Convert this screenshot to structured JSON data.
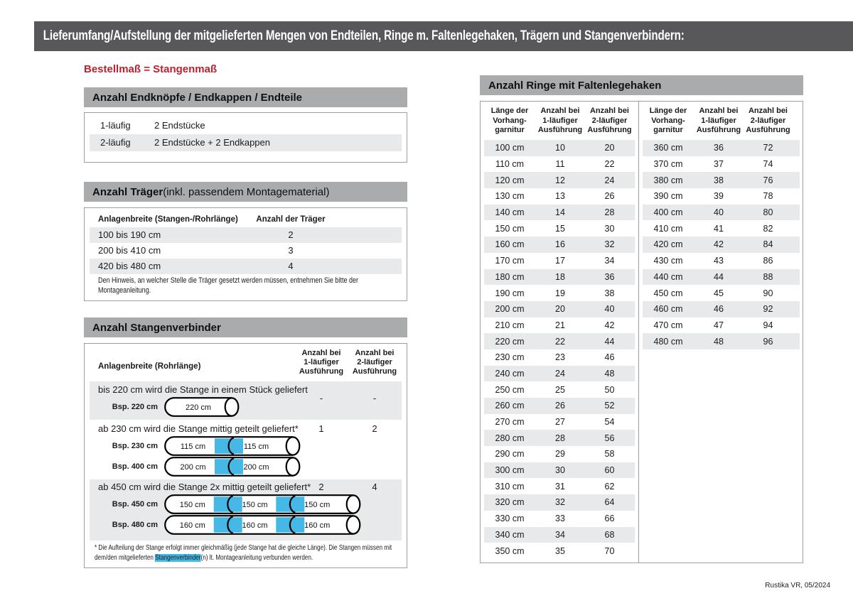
{
  "page": {
    "header": "Lieferumfang/Aufstellung der mitgelieferten Mengen von Endteilen, Ringe m. Faltenlegehaken, Trägern und Stangenverbindern:",
    "subtitle": "Bestellmaß = Stangenmaß",
    "footer": "Rustika VR, 05/2024"
  },
  "colors": {
    "header_bar": "#58585a",
    "section_bar": "#a9abad",
    "row_stripe": "#e8e9ea",
    "connector_blue": "#45b8e6",
    "accent_red": "#be1e2d"
  },
  "endteile": {
    "title": "Anzahl Endknöpfe / Endkappen / Endteile",
    "rows": [
      {
        "label": "1-läufig",
        "value": "2 Endstücke"
      },
      {
        "label": "2-läufig",
        "value": "2 Endstücke + 2 Endkappen"
      }
    ]
  },
  "traeger": {
    "title_bold": "Anzahl Träger",
    "title_rest": " (inkl. passendem Montagematerial)",
    "col1": "Anlagenbreite (Stangen-/Rohrlänge)",
    "col2": "Anzahl der Träger",
    "rows": [
      {
        "range": "100 bis 190 cm",
        "count": "2"
      },
      {
        "range": "200 bis 410 cm",
        "count": "3"
      },
      {
        "range": "420 bis 480 cm",
        "count": "4"
      }
    ],
    "note": "Den Hinweis, an welcher Stelle die Träger gesetzt werden müssen, entnehmen Sie bitte der Montageanleitung."
  },
  "verbinder": {
    "title": "Anzahl Stangenverbinder",
    "col1": "Anlagenbreite (Rohrlänge)",
    "col2_lines": [
      "Anzahl bei",
      "1-läufiger",
      "Ausführung"
    ],
    "col3_lines": [
      "Anzahl bei",
      "2-läufiger",
      "Ausführung"
    ],
    "groups": [
      {
        "desc": "bis 220 cm wird die Stange in einem Stück geliefert",
        "count1": "-",
        "count2": "-",
        "examples": [
          {
            "label": "Bsp. 220 cm",
            "segments": [
              "220 cm"
            ]
          }
        ]
      },
      {
        "desc": "ab 230 cm wird die Stange mittig geteilt geliefert*",
        "count1": "1",
        "count2": "2",
        "examples": [
          {
            "label": "Bsp. 230 cm",
            "segments": [
              "115 cm",
              "115 cm"
            ]
          },
          {
            "label": "Bsp. 400 cm",
            "segments": [
              "200 cm",
              "200 cm"
            ]
          }
        ]
      },
      {
        "desc": "ab 450 cm wird die Stange 2x mittig geteilt geliefert*",
        "count1": "2",
        "count2": "4",
        "examples": [
          {
            "label": "Bsp. 450 cm",
            "segments": [
              "150 cm",
              "150 cm",
              "150 cm"
            ]
          },
          {
            "label": "Bsp. 480 cm",
            "segments": [
              "160 cm",
              "160 cm",
              "160 cm"
            ]
          }
        ]
      }
    ],
    "footnote_pre": "* Die Aufteilung der Stange erfolgt immer gleichmäßig (jede Stange hat die gleiche Länge). Die Stangen müssen mit dem/den mitgelieferten ",
    "footnote_highlight": "Stangenverbinder",
    "footnote_post": "(n) lt. Montageanleitung verbunden werden."
  },
  "ringe": {
    "title": "Anzahl Ringe mit Faltenlegehaken",
    "col_headers": [
      [
        "Länge der",
        "Vorhang-",
        "garnitur"
      ],
      [
        "Anzahl bei",
        "1-läufiger",
        "Ausführung"
      ],
      [
        "Anzahl bei",
        "2-läufiger",
        "Ausführung"
      ]
    ],
    "left_rows": [
      {
        "len": "100 cm",
        "c1": "10",
        "c2": "20"
      },
      {
        "len": "110 cm",
        "c1": "11",
        "c2": "22"
      },
      {
        "len": "120 cm",
        "c1": "12",
        "c2": "24"
      },
      {
        "len": "130 cm",
        "c1": "13",
        "c2": "26"
      },
      {
        "len": "140 cm",
        "c1": "14",
        "c2": "28"
      },
      {
        "len": "150 cm",
        "c1": "15",
        "c2": "30"
      },
      {
        "len": "160 cm",
        "c1": "16",
        "c2": "32"
      },
      {
        "len": "170 cm",
        "c1": "17",
        "c2": "34"
      },
      {
        "len": "180 cm",
        "c1": "18",
        "c2": "36"
      },
      {
        "len": "190 cm",
        "c1": "19",
        "c2": "38"
      },
      {
        "len": "200 cm",
        "c1": "20",
        "c2": "40"
      },
      {
        "len": "210 cm",
        "c1": "21",
        "c2": "42"
      },
      {
        "len": "220 cm",
        "c1": "22",
        "c2": "44"
      },
      {
        "len": "230 cm",
        "c1": "23",
        "c2": "46"
      },
      {
        "len": "240 cm",
        "c1": "24",
        "c2": "48"
      },
      {
        "len": "250 cm",
        "c1": "25",
        "c2": "50"
      },
      {
        "len": "260 cm",
        "c1": "26",
        "c2": "52"
      },
      {
        "len": "270 cm",
        "c1": "27",
        "c2": "54"
      },
      {
        "len": "280 cm",
        "c1": "28",
        "c2": "56"
      },
      {
        "len": "290 cm",
        "c1": "29",
        "c2": "58"
      },
      {
        "len": "300 cm",
        "c1": "30",
        "c2": "60"
      },
      {
        "len": "310 cm",
        "c1": "31",
        "c2": "62"
      },
      {
        "len": "320 cm",
        "c1": "32",
        "c2": "64"
      },
      {
        "len": "330 cm",
        "c1": "33",
        "c2": "66"
      },
      {
        "len": "340 cm",
        "c1": "34",
        "c2": "68"
      },
      {
        "len": "350 cm",
        "c1": "35",
        "c2": "70"
      }
    ],
    "right_rows": [
      {
        "len": "360 cm",
        "c1": "36",
        "c2": "72"
      },
      {
        "len": "370 cm",
        "c1": "37",
        "c2": "74"
      },
      {
        "len": "380 cm",
        "c1": "38",
        "c2": "76"
      },
      {
        "len": "390 cm",
        "c1": "39",
        "c2": "78"
      },
      {
        "len": "400 cm",
        "c1": "40",
        "c2": "80"
      },
      {
        "len": "410 cm",
        "c1": "41",
        "c2": "82"
      },
      {
        "len": "420 cm",
        "c1": "42",
        "c2": "84"
      },
      {
        "len": "430 cm",
        "c1": "43",
        "c2": "86"
      },
      {
        "len": "440 cm",
        "c1": "44",
        "c2": "88"
      },
      {
        "len": "450 cm",
        "c1": "45",
        "c2": "90"
      },
      {
        "len": "460 cm",
        "c1": "46",
        "c2": "92"
      },
      {
        "len": "470 cm",
        "c1": "47",
        "c2": "94"
      },
      {
        "len": "480 cm",
        "c1": "48",
        "c2": "96"
      }
    ]
  }
}
